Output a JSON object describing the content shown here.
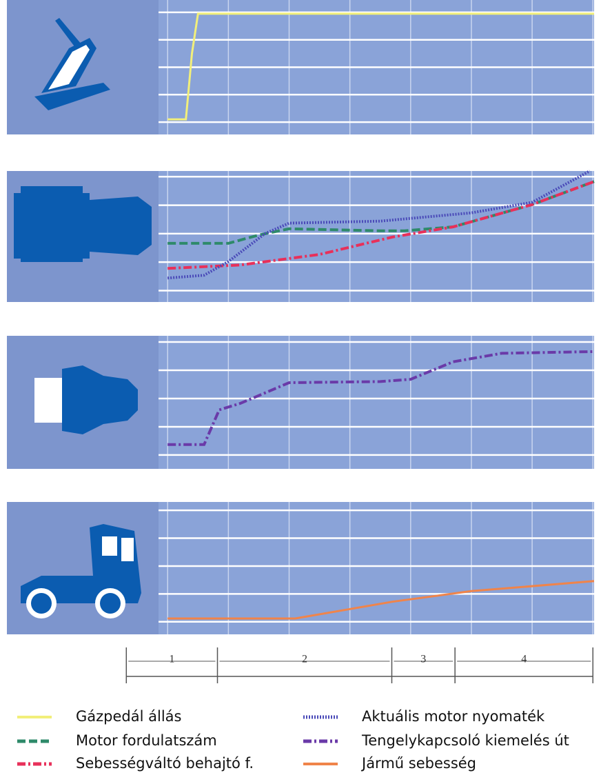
{
  "chart_data": [
    {
      "type": "line",
      "xlim": [
        -0.15,
        7.02
      ],
      "ylim": [
        -0.45,
        4.45
      ],
      "xgrid": [
        0,
        1,
        2,
        3,
        4,
        5,
        6,
        7
      ],
      "ygrid": [
        0,
        1,
        2,
        3,
        4
      ],
      "series": [
        {
          "name": "Gázpedál állás",
          "color": "#f2ef7a",
          "style": "solid",
          "x": [
            0,
            0.3,
            0.4,
            0.5,
            7.02
          ],
          "values": [
            0.1,
            0.1,
            2.5,
            3.95,
            3.95
          ]
        }
      ]
    },
    {
      "type": "line",
      "xlim": [
        -0.15,
        7.02
      ],
      "ylim": [
        -0.4,
        4.2
      ],
      "xgrid": [
        0,
        1,
        2,
        3,
        4,
        5,
        6,
        7
      ],
      "ygrid": [
        0,
        1,
        2,
        3,
        4
      ],
      "series": [
        {
          "name": "Motor fordulatszám",
          "color": "#2e8a6a",
          "style": "dashed",
          "x": [
            0,
            1,
            1.5,
            2,
            3.5,
            3.9,
            4.7,
            6,
            7.02
          ],
          "values": [
            1.66,
            1.66,
            1.95,
            2.17,
            2.1,
            2.1,
            2.24,
            3.02,
            3.83
          ]
        },
        {
          "name": "Sebességváltó behajtó f.",
          "color": "#e8305a",
          "style": "dashdot",
          "x": [
            0,
            1.2,
            2.5,
            3.7,
            4.7,
            6,
            7.02
          ],
          "values": [
            0.78,
            0.9,
            1.27,
            1.88,
            2.24,
            3.02,
            3.83
          ]
        },
        {
          "name": "Aktuális motor nyomaték",
          "color": "#4a4ab8",
          "style": "dotted",
          "x": [
            0,
            0.6,
            1,
            1.6,
            2,
            3.5,
            5,
            6,
            6.95
          ],
          "values": [
            0.44,
            0.54,
            1.02,
            2,
            2.37,
            2.44,
            2.73,
            3.1,
            4.2
          ]
        }
      ]
    },
    {
      "type": "line",
      "xlim": [
        -0.15,
        7.02
      ],
      "ylim": [
        -0.49,
        4.22
      ],
      "xgrid": [
        0,
        1,
        2,
        3,
        4,
        5,
        6,
        7
      ],
      "ygrid": [
        0,
        1,
        2,
        3,
        4
      ],
      "series": [
        {
          "name": "Tengelykapcsoló kiemelés út",
          "color": "#6a3aa8",
          "style": "dashdot",
          "x": [
            0,
            0.6,
            0.85,
            1.2,
            2,
            3.5,
            4,
            4.7,
            5.5,
            7.02
          ],
          "values": [
            0.37,
            0.37,
            1.6,
            1.83,
            2.56,
            2.6,
            2.68,
            3.3,
            3.6,
            3.66
          ]
        }
      ]
    },
    {
      "type": "line",
      "xlim": [
        -0.15,
        7.02
      ],
      "ylim": [
        -0.45,
        4.3
      ],
      "xgrid": [
        0,
        1,
        2,
        3,
        4,
        5,
        6,
        7
      ],
      "ygrid": [
        0,
        1,
        2,
        3,
        4
      ],
      "series": [
        {
          "name": "Jármű sebesség",
          "color": "#f0844a",
          "style": "solid",
          "x": [
            0,
            2.1,
            3.7,
            5,
            7.02
          ],
          "values": [
            0.12,
            0.12,
            0.72,
            1.1,
            1.46
          ]
        }
      ]
    },
    {
      "type": "phases",
      "xlim": [
        -0.15,
        7.02
      ],
      "labels": [
        "1",
        "2",
        "3",
        "4"
      ],
      "edges": [
        -0.68,
        0.82,
        3.69,
        4.73,
        7
      ]
    }
  ]
}
